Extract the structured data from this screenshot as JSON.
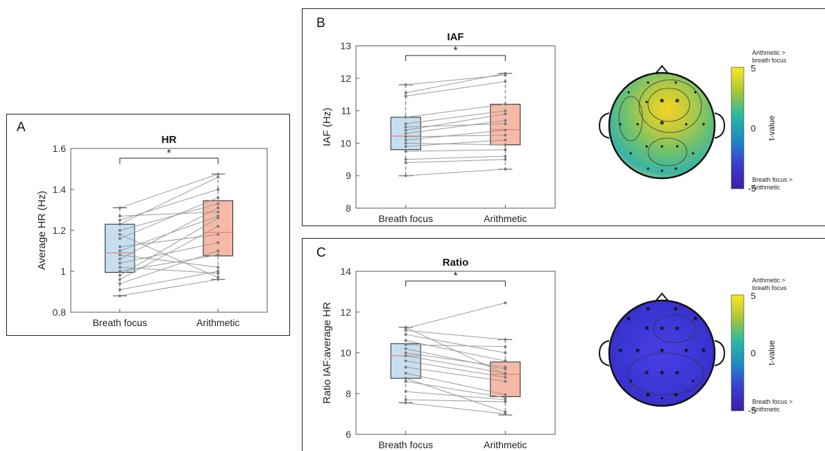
{
  "figure": {
    "colors": {
      "box_breath": "#c6dff0",
      "box_arith": "#f6b9a7",
      "median": "#e2706a",
      "lines": "#9a9a9a",
      "points": "#7a7a7a",
      "axis": "#333333"
    },
    "colorbar": {
      "top_label": "5",
      "mid_label": "0",
      "bottom_label": "-5",
      "title": "t-value",
      "top_note_line1": "Arithmetic >",
      "top_note_line2": "breath focus",
      "bottom_note_line1": "Breath focus >",
      "bottom_note_line2": "Arithmetic",
      "colors": [
        "#fde725",
        "#a8c636",
        "#28b9a4",
        "#1f8ac2",
        "#3b3cd0",
        "#3b1fa8"
      ]
    }
  },
  "panels": {
    "A": {
      "letter": "A",
      "chart_data": {
        "type": "box",
        "title": "HR",
        "ylabel": "Average HR (Hz)",
        "categories": [
          "Breath focus",
          "Arithmetic"
        ],
        "ylim": [
          0.8,
          1.6
        ],
        "yticks": [
          "0.8",
          "1",
          "1.2",
          "1.4",
          "1.6"
        ],
        "significance": "*",
        "box": [
          {
            "q1": 0.995,
            "median": 1.09,
            "q3": 1.23,
            "whisker_low": 0.88,
            "whisker_high": 1.31
          },
          {
            "q1": 1.075,
            "median": 1.19,
            "q3": 1.345,
            "whisker_low": 0.96,
            "whisker_high": 1.475
          }
        ],
        "paired": [
          [
            0.88,
            0.96
          ],
          [
            0.91,
            1.0
          ],
          [
            0.94,
            1.1
          ],
          [
            0.96,
            1.22
          ],
          [
            0.98,
            1.26
          ],
          [
            1.0,
            1.08
          ],
          [
            1.02,
            0.99
          ],
          [
            1.04,
            1.14
          ],
          [
            1.06,
            1.31
          ],
          [
            1.08,
            1.02
          ],
          [
            1.1,
            1.27
          ],
          [
            1.12,
            1.18
          ],
          [
            1.16,
            1.36
          ],
          [
            1.18,
            0.97
          ],
          [
            1.2,
            1.33
          ],
          [
            1.23,
            1.46
          ],
          [
            1.25,
            1.4
          ],
          [
            1.27,
            1.29
          ],
          [
            1.31,
            1.475
          ]
        ]
      }
    },
    "B": {
      "letter": "B",
      "chart_data": {
        "type": "box",
        "title": "IAF",
        "ylabel": "IAF (Hz)",
        "categories": [
          "Breath focus",
          "Arithmetic"
        ],
        "ylim": [
          8,
          13
        ],
        "yticks": [
          "8",
          "9",
          "10",
          "11",
          "12",
          "13"
        ],
        "significance": "*",
        "box": [
          {
            "q1": 9.8,
            "median": 10.22,
            "q3": 10.8,
            "whisker_low": 9.0,
            "whisker_high": 11.8
          },
          {
            "q1": 9.95,
            "median": 10.42,
            "q3": 11.2,
            "whisker_low": 9.2,
            "whisker_high": 12.15
          }
        ],
        "paired": [
          [
            9.0,
            9.2
          ],
          [
            9.4,
            9.5
          ],
          [
            9.5,
            9.6
          ],
          [
            9.75,
            9.8
          ],
          [
            9.9,
            10.1
          ],
          [
            10.0,
            9.95
          ],
          [
            10.1,
            10.4
          ],
          [
            10.2,
            10.25
          ],
          [
            10.3,
            10.7
          ],
          [
            10.4,
            10.9
          ],
          [
            10.5,
            10.6
          ],
          [
            10.6,
            11.0
          ],
          [
            10.8,
            11.2
          ],
          [
            11.45,
            11.9
          ],
          [
            11.55,
            12.15
          ],
          [
            11.8,
            12.1
          ]
        ]
      },
      "topomap": {
        "sig_electrodes": 3
      }
    },
    "C": {
      "letter": "C",
      "chart_data": {
        "type": "box",
        "title": "Ratio",
        "ylabel": "Ratio IAF:average HR",
        "categories": [
          "Breath focus",
          "Arithmetic"
        ],
        "ylim": [
          6,
          14
        ],
        "yticks": [
          "6",
          "8",
          "10",
          "12",
          "14"
        ],
        "significance": "*",
        "box": [
          {
            "q1": 8.75,
            "median": 9.85,
            "q3": 10.45,
            "whisker_low": 7.55,
            "whisker_high": 11.25
          },
          {
            "q1": 7.85,
            "median": 8.95,
            "q3": 9.55,
            "whisker_low": 6.95,
            "whisker_high": 10.65
          }
        ],
        "paired": [
          [
            7.55,
            7.0
          ],
          [
            7.7,
            7.6
          ],
          [
            8.1,
            7.7
          ],
          [
            8.6,
            7.8
          ],
          [
            8.75,
            7.1
          ],
          [
            9.0,
            7.95
          ],
          [
            9.3,
            8.6
          ],
          [
            9.6,
            8.8
          ],
          [
            9.85,
            9.0
          ],
          [
            10.0,
            9.3
          ],
          [
            10.2,
            9.2
          ],
          [
            10.4,
            10.3
          ],
          [
            10.6,
            9.6
          ],
          [
            10.9,
            10.0
          ],
          [
            11.1,
            10.65
          ],
          [
            11.2,
            12.45
          ],
          [
            11.25,
            8.95
          ]
        ]
      },
      "topomap": {
        "sig_electrodes": 17
      }
    }
  }
}
